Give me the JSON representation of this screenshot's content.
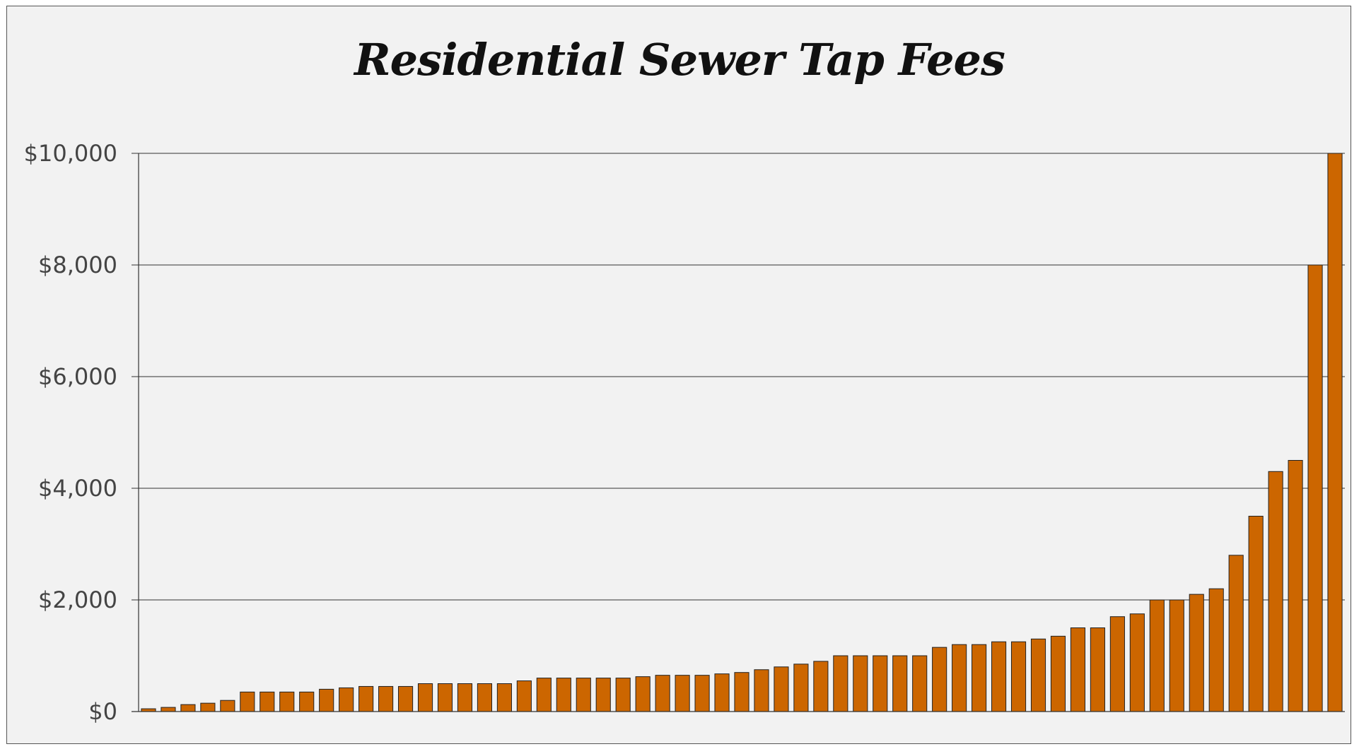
{
  "chart_data": {
    "type": "bar",
    "title": "Residential Sewer Tap Fees",
    "xlabel": "",
    "ylabel": "",
    "ylim": [
      0,
      10000
    ],
    "yticks": [
      "$0",
      "$2,000",
      "$4,000",
      "$6,000",
      "$8,000",
      "$10,000"
    ],
    "ytick_values": [
      0,
      2000,
      4000,
      6000,
      8000,
      10000
    ],
    "grid": true,
    "bar_color": "#cc6600",
    "bar_edge_color": "#222222",
    "values": [
      50,
      75,
      125,
      150,
      200,
      350,
      350,
      350,
      350,
      400,
      425,
      450,
      450,
      450,
      500,
      500,
      500,
      500,
      500,
      550,
      600,
      600,
      600,
      600,
      600,
      625,
      650,
      650,
      650,
      675,
      700,
      750,
      800,
      850,
      900,
      1000,
      1000,
      1000,
      1000,
      1000,
      1150,
      1200,
      1200,
      1250,
      1250,
      1300,
      1350,
      1500,
      1500,
      1700,
      1750,
      2000,
      2000,
      2100,
      2200,
      2800,
      3500,
      4300,
      4500,
      8000,
      10000
    ]
  }
}
